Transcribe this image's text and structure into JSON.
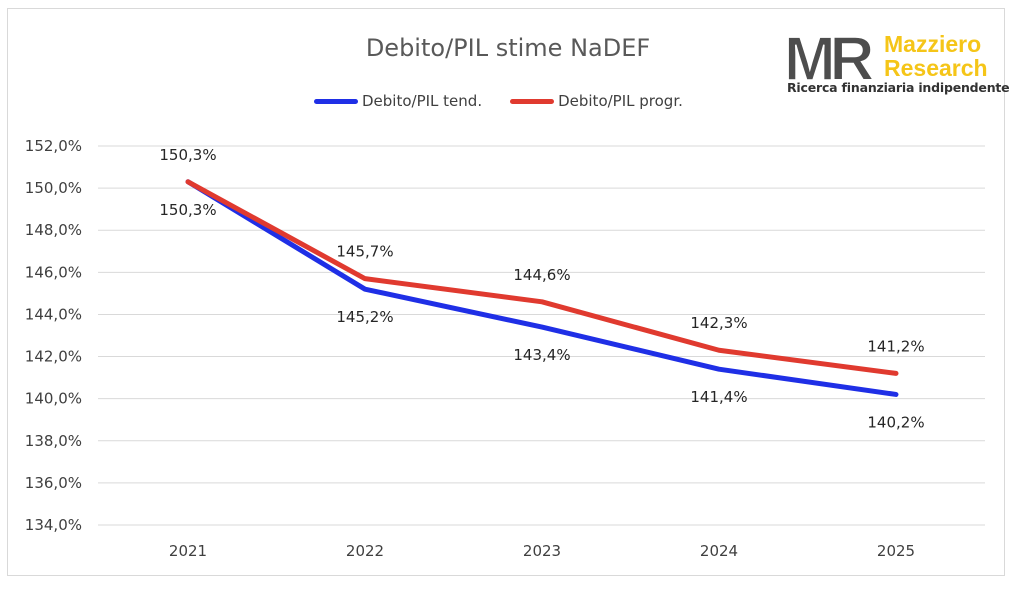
{
  "chart_data": {
    "type": "line",
    "title": "Debito/PIL stime NaDEF",
    "categories": [
      "2021",
      "2022",
      "2023",
      "2024",
      "2025"
    ],
    "series": [
      {
        "name": "Debito/PIL tend.",
        "color": "#1f2fe6",
        "values": [
          150.3,
          145.2,
          143.4,
          141.4,
          140.2
        ],
        "labels": [
          "150,3%",
          "145,2%",
          "143,4%",
          "141,4%",
          "140,2%"
        ]
      },
      {
        "name": "Debito/PIL progr.",
        "color": "#e03a2f",
        "values": [
          150.3,
          145.7,
          144.6,
          142.3,
          141.2
        ],
        "labels": [
          "150,3%",
          "145,7%",
          "144,6%",
          "142,3%",
          "141,2%"
        ]
      }
    ],
    "yticks": [
      134,
      136,
      138,
      140,
      142,
      144,
      146,
      148,
      150,
      152
    ],
    "ytick_labels": [
      "134,0%",
      "136,0%",
      "138,0%",
      "140,0%",
      "142,0%",
      "144,0%",
      "146,0%",
      "148,0%",
      "150,0%",
      "152,0%"
    ],
    "ylim": [
      134,
      152
    ],
    "grid": true,
    "legend_position": "top"
  },
  "logo": {
    "mark": "MR",
    "name_line1": "Mazziero",
    "name_line2": "Research",
    "tagline": "Ricerca finanziaria indipendente",
    "colors": {
      "mark": "#4d4d4d",
      "name": "#f5c518",
      "tagline": "#333333"
    }
  }
}
